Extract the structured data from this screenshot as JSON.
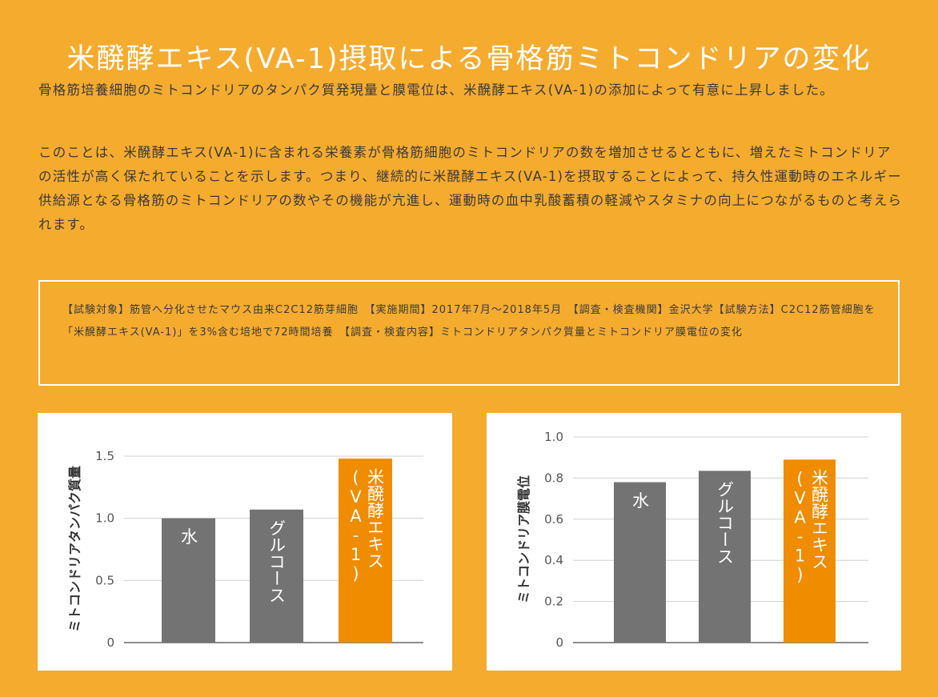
{
  "title": "米醗酵エキス(VA-1)摂取による骨格筋ミトコンドリアの変化",
  "paragraph1": "骨格筋培養細胞のミトコンドリアのタンパク質発現量と膜電位は、米醗酵エキス(VA-1)の添加によって有意に上昇しました。",
  "paragraph2": "このことは、米醗酵エキス(VA-1)に含まれる栄養素が骨格筋細胞のミトコンドリアの数を増加させるとともに、増えたミトコンドリアの活性が高く保たれていることを示します。つまり、継続的に米醗酵エキス(VA-1)を摂取することによって、持久性運動時のエネルギー供給源となる骨格筋のミトコンドリアの数やその機能が亢進し、運動時の血中乳酸蓄積の軽減やスタミナの向上につながるものと考えられます。",
  "study_info": "【試験対象】筋管へ分化させたマウス由来C2C12筋芽細胞　【実施期間】2017年7月〜2018年5月　【調査・検査機関】金沢大学【試験方法】C2C12筋管細胞を「米醗酵エキス(VA-1)」を3%含む培地で72時間培養　【調査・検査内容】ミトコンドリアタンパク質量とミトコンドリア膜電位の変化",
  "colors": {
    "background": "#f5ab2e",
    "bar_gray": "#737373",
    "bar_orange": "#ef8c00"
  },
  "chart_data": [
    {
      "type": "bar",
      "ylabel": "ミトコンドリアタンパク質量",
      "categories": [
        "水",
        "グルコース",
        "米醗酵エキス(VA-1)"
      ],
      "values": [
        1.0,
        1.07,
        1.48
      ],
      "bar_colors": [
        "#737373",
        "#737373",
        "#ef8c00"
      ],
      "ylim": [
        0,
        1.5
      ],
      "yticks": [
        0,
        0.5,
        1.0,
        1.5
      ],
      "ytick_labels": [
        "0",
        "0.5",
        "1.0",
        "1.5"
      ],
      "bar_labels": [
        {
          "lines": [
            "水"
          ]
        },
        {
          "lines": [
            "グルコース"
          ]
        },
        {
          "lines": [
            "米醗酵エキス",
            "(VA-1)"
          ]
        }
      ],
      "grid": true
    },
    {
      "type": "bar",
      "ylabel": "ミトコンドリア膜電位",
      "categories": [
        "水",
        "グルコース",
        "米醗酵エキス(VA-1)"
      ],
      "values": [
        0.78,
        0.835,
        0.89
      ],
      "bar_colors": [
        "#737373",
        "#737373",
        "#ef8c00"
      ],
      "ylim": [
        0,
        1.0
      ],
      "yticks": [
        0,
        0.2,
        0.4,
        0.6,
        0.8,
        1.0
      ],
      "ytick_labels": [
        "0",
        "0.2",
        "0.4",
        "0.6",
        "0.8",
        "1.0"
      ],
      "bar_labels": [
        {
          "lines": [
            "水"
          ]
        },
        {
          "lines": [
            "グルコース"
          ]
        },
        {
          "lines": [
            "米醗酵エキス",
            "(VA-1)"
          ]
        }
      ],
      "grid": true
    }
  ]
}
